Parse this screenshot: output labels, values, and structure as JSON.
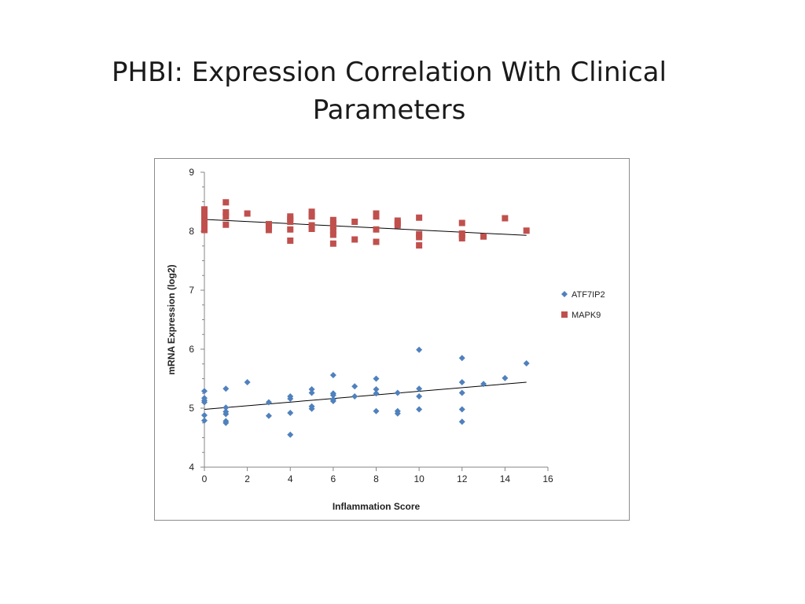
{
  "slide": {
    "title_line1": "PHBI: Expression Correlation With Clinical",
    "title_line2": "Parameters"
  },
  "chart_data": {
    "type": "scatter",
    "title": "",
    "xlabel": "Inflammation Score",
    "ylabel": "mRNA Expression (log2)",
    "xlim": [
      0,
      16
    ],
    "ylim": [
      4,
      9
    ],
    "x_ticks": [
      0,
      2,
      4,
      6,
      8,
      10,
      12,
      14,
      16
    ],
    "y_ticks": [
      4,
      5,
      6,
      7,
      8,
      9
    ],
    "grid": false,
    "legend_position": "right",
    "series": [
      {
        "name": "ATF7IP2",
        "marker": "diamond",
        "color": "#4f81bd",
        "trendline": {
          "x": [
            0,
            15
          ],
          "y": [
            4.98,
            5.44
          ]
        },
        "points": [
          [
            0,
            5.29
          ],
          [
            0,
            5.17
          ],
          [
            0,
            5.13
          ],
          [
            0,
            5.1
          ],
          [
            0,
            4.88
          ],
          [
            0,
            4.79
          ],
          [
            1,
            5.33
          ],
          [
            1,
            5.01
          ],
          [
            1,
            4.94
          ],
          [
            1,
            4.9
          ],
          [
            1,
            4.78
          ],
          [
            1,
            4.75
          ],
          [
            2,
            5.44
          ],
          [
            3,
            5.1
          ],
          [
            3,
            4.87
          ],
          [
            4,
            5.2
          ],
          [
            4,
            5.16
          ],
          [
            4,
            4.92
          ],
          [
            4,
            4.55
          ],
          [
            5,
            5.32
          ],
          [
            5,
            5.26
          ],
          [
            5,
            5.03
          ],
          [
            5,
            4.99
          ],
          [
            6,
            5.56
          ],
          [
            6,
            5.25
          ],
          [
            6,
            5.22
          ],
          [
            6,
            5.15
          ],
          [
            6,
            5.12
          ],
          [
            7,
            5.37
          ],
          [
            7,
            5.2
          ],
          [
            8,
            5.5
          ],
          [
            8,
            5.32
          ],
          [
            8,
            5.25
          ],
          [
            8,
            4.95
          ],
          [
            9,
            5.26
          ],
          [
            9,
            4.95
          ],
          [
            9,
            4.91
          ],
          [
            10,
            5.99
          ],
          [
            10,
            5.33
          ],
          [
            10,
            5.2
          ],
          [
            10,
            4.98
          ],
          [
            12,
            5.85
          ],
          [
            12,
            5.44
          ],
          [
            12,
            5.26
          ],
          [
            12,
            4.98
          ],
          [
            12,
            4.77
          ],
          [
            13,
            5.41
          ],
          [
            14,
            5.51
          ],
          [
            15,
            5.76
          ]
        ]
      },
      {
        "name": "MAPK9",
        "marker": "square",
        "color": "#c0504d",
        "trendline": {
          "x": [
            0,
            15
          ],
          "y": [
            8.2,
            7.93
          ]
        },
        "points": [
          [
            0,
            8.37
          ],
          [
            0,
            8.33
          ],
          [
            0,
            8.28
          ],
          [
            0,
            8.2
          ],
          [
            0,
            8.14
          ],
          [
            0,
            8.07
          ],
          [
            0,
            8.02
          ],
          [
            1,
            8.49
          ],
          [
            1,
            8.32
          ],
          [
            1,
            8.25
          ],
          [
            1,
            8.11
          ],
          [
            2,
            8.3
          ],
          [
            3,
            8.12
          ],
          [
            3,
            8.08
          ],
          [
            3,
            8.02
          ],
          [
            4,
            8.25
          ],
          [
            4,
            8.21
          ],
          [
            4,
            8.16
          ],
          [
            4,
            8.03
          ],
          [
            4,
            7.84
          ],
          [
            5,
            8.33
          ],
          [
            5,
            8.28
          ],
          [
            5,
            8.25
          ],
          [
            5,
            8.1
          ],
          [
            5,
            8.04
          ],
          [
            6,
            8.19
          ],
          [
            6,
            8.13
          ],
          [
            6,
            8.07
          ],
          [
            6,
            8.01
          ],
          [
            6,
            7.94
          ],
          [
            6,
            7.79
          ],
          [
            7,
            8.16
          ],
          [
            7,
            7.86
          ],
          [
            8,
            8.3
          ],
          [
            8,
            8.25
          ],
          [
            8,
            8.03
          ],
          [
            8,
            7.82
          ],
          [
            9,
            8.18
          ],
          [
            9,
            8.14
          ],
          [
            9,
            8.1
          ],
          [
            10,
            8.23
          ],
          [
            10,
            7.95
          ],
          [
            10,
            7.9
          ],
          [
            10,
            7.76
          ],
          [
            12,
            8.14
          ],
          [
            12,
            7.96
          ],
          [
            12,
            7.93
          ],
          [
            12,
            7.88
          ],
          [
            13,
            7.91
          ],
          [
            14,
            8.22
          ],
          [
            15,
            8.01
          ]
        ]
      }
    ]
  }
}
